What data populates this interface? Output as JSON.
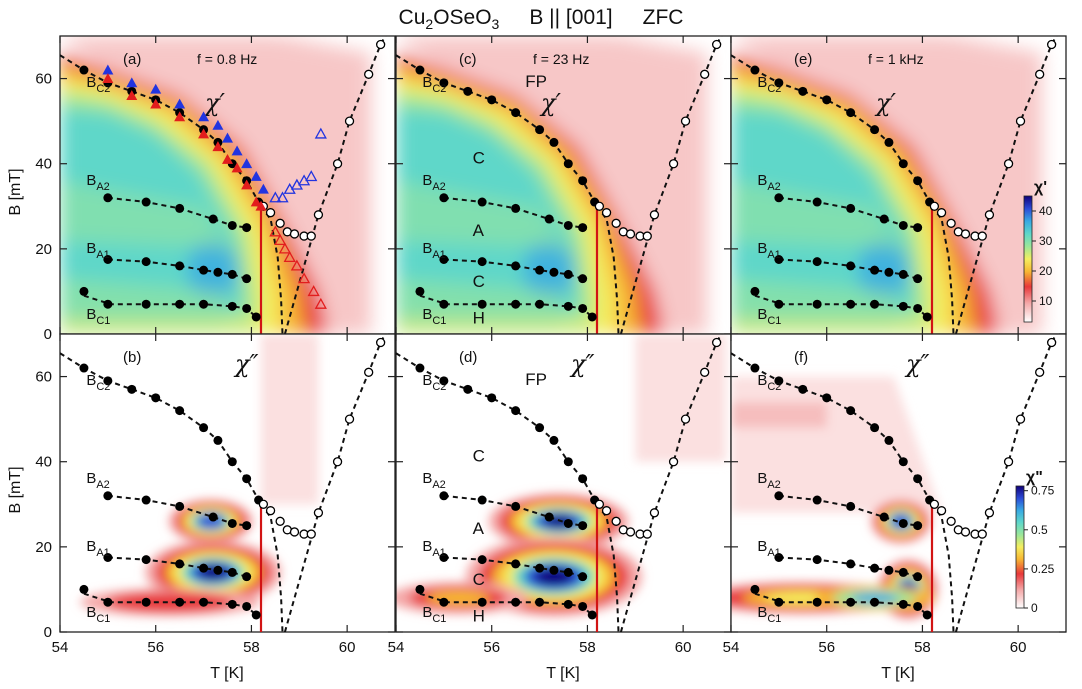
{
  "figure": {
    "title_compound": "Cu",
    "title_sub2": "2",
    "title_mid": "OSeO",
    "title_sub3": "3",
    "title_field": "B || [001]",
    "title_protocol": "ZFC",
    "ylabel": "B [mT]",
    "xlabel": "T [K]"
  },
  "chart_data": {
    "type": "scatter",
    "x_range": [
      54,
      61
    ],
    "y_range": [
      0,
      70
    ],
    "x_ticks": [
      54,
      56,
      58,
      60
    ],
    "y_ticks": [
      0,
      20,
      40,
      60
    ],
    "columns": [
      {
        "row1_label": "(a)",
        "row2_label": "(b)",
        "frequency": "f = 0.8 Hz"
      },
      {
        "row1_label": "(c)",
        "row2_label": "(d)",
        "frequency": "f = 23 Hz"
      },
      {
        "row1_label": "(e)",
        "row2_label": "(f)",
        "frequency": "f = 1 kHz"
      }
    ],
    "row_symbols": [
      "χ′",
      "χ″"
    ],
    "boundary_labels": [
      {
        "name": "BC2",
        "base": "B",
        "sub": "C2",
        "T": 54.55,
        "B": 58
      },
      {
        "name": "BA2",
        "base": "B",
        "sub": "A2",
        "T": 54.55,
        "B": 35
      },
      {
        "name": "BA1",
        "base": "B",
        "sub": "A1",
        "T": 54.55,
        "B": 19
      },
      {
        "name": "BC1",
        "base": "B",
        "sub": "C1",
        "T": 54.55,
        "B": 3.5
      }
    ],
    "phase_labels": [
      {
        "text": "FP",
        "T": 56.7,
        "B": 58
      },
      {
        "text": "C",
        "T": 55.6,
        "B": 40
      },
      {
        "text": "A",
        "T": 55.6,
        "B": 23
      },
      {
        "text": "C",
        "T": 55.6,
        "B": 11
      },
      {
        "text": "H",
        "T": 55.6,
        "B": 2.5
      }
    ],
    "series": [
      {
        "name": "BC2",
        "points": [
          [
            54.5,
            62
          ],
          [
            55,
            59
          ],
          [
            55.5,
            57
          ],
          [
            56,
            55
          ],
          [
            56.5,
            52
          ],
          [
            57,
            48
          ],
          [
            57.3,
            45
          ],
          [
            57.6,
            40
          ],
          [
            57.9,
            36
          ],
          [
            58.15,
            31
          ]
        ]
      },
      {
        "name": "BA2",
        "points": [
          [
            55,
            32
          ],
          [
            55.8,
            31
          ],
          [
            56.5,
            29.5
          ],
          [
            57.2,
            27
          ],
          [
            57.6,
            25.5
          ],
          [
            57.9,
            25
          ]
        ]
      },
      {
        "name": "BA1",
        "points": [
          [
            55,
            17.5
          ],
          [
            55.8,
            17
          ],
          [
            56.5,
            16
          ],
          [
            57,
            15
          ],
          [
            57.3,
            14.5
          ],
          [
            57.6,
            14
          ],
          [
            57.9,
            13
          ]
        ]
      },
      {
        "name": "BC1",
        "points": [
          [
            54.5,
            10
          ],
          [
            55,
            7
          ],
          [
            55.8,
            7
          ],
          [
            56.5,
            7
          ],
          [
            57,
            7
          ],
          [
            57.6,
            6.5
          ],
          [
            57.9,
            6
          ],
          [
            58.1,
            4
          ]
        ]
      },
      {
        "name": "upper_open",
        "points": [
          [
            58.25,
            30
          ],
          [
            58.4,
            28.5
          ],
          [
            58.6,
            26
          ],
          [
            58.75,
            24
          ],
          [
            58.9,
            23.5
          ],
          [
            59.1,
            23
          ],
          [
            59.25,
            23
          ]
        ]
      },
      {
        "name": "steep_open",
        "points": [
          [
            59.4,
            28
          ],
          [
            59.8,
            40
          ],
          [
            60.05,
            50
          ],
          [
            60.45,
            61
          ],
          [
            60.7,
            68
          ]
        ]
      }
    ],
    "vertical_line_T": 58.2,
    "panel_a_blue_triangles": [
      [
        55,
        62
      ],
      [
        55.5,
        59
      ],
      [
        56,
        57.5
      ],
      [
        56.5,
        54
      ],
      [
        57,
        51
      ],
      [
        57.3,
        49
      ],
      [
        57.5,
        46
      ],
      [
        57.7,
        43
      ],
      [
        57.9,
        40
      ],
      [
        58.1,
        37
      ],
      [
        58.25,
        34
      ]
    ],
    "panel_a_red_triangles": [
      [
        55,
        60
      ],
      [
        55.5,
        56
      ],
      [
        56,
        54
      ],
      [
        56.5,
        51
      ],
      [
        57,
        47
      ],
      [
        57.3,
        44
      ],
      [
        57.5,
        41
      ],
      [
        57.7,
        39
      ],
      [
        57.9,
        35
      ],
      [
        58.1,
        31
      ],
      [
        58.2,
        30
      ]
    ],
    "panel_a_open_blue_triangles": [
      [
        58.5,
        32
      ],
      [
        58.65,
        32
      ],
      [
        58.8,
        34
      ],
      [
        58.95,
        35
      ],
      [
        59.1,
        36
      ],
      [
        59.25,
        37
      ],
      [
        59.45,
        47
      ]
    ],
    "panel_a_open_red_triangles": [
      [
        58.5,
        24
      ],
      [
        58.6,
        22
      ],
      [
        58.7,
        20
      ],
      [
        58.8,
        18
      ],
      [
        58.95,
        16
      ],
      [
        59.1,
        13
      ],
      [
        59.3,
        10
      ],
      [
        59.45,
        7
      ]
    ],
    "colorbar_chi1": {
      "label": "χ'",
      "ticks": [
        10,
        20,
        30,
        40
      ],
      "range": [
        3,
        45
      ]
    },
    "colorbar_chi2": {
      "label": "χ\"",
      "ticks": [
        0,
        0.25,
        0.5,
        0.75
      ],
      "range": [
        0,
        0.78
      ]
    }
  },
  "colors": {
    "cmap": [
      "#ffffff",
      "#f4a7a7",
      "#e8383a",
      "#f7b733",
      "#f4ee60",
      "#9be69a",
      "#5fd7c9",
      "#38a9e3",
      "#2c4bd6",
      "#11007a"
    ],
    "red_line": "#d21414",
    "blue_triangle": "#2134e0",
    "red_triangle": "#e21d1d"
  }
}
